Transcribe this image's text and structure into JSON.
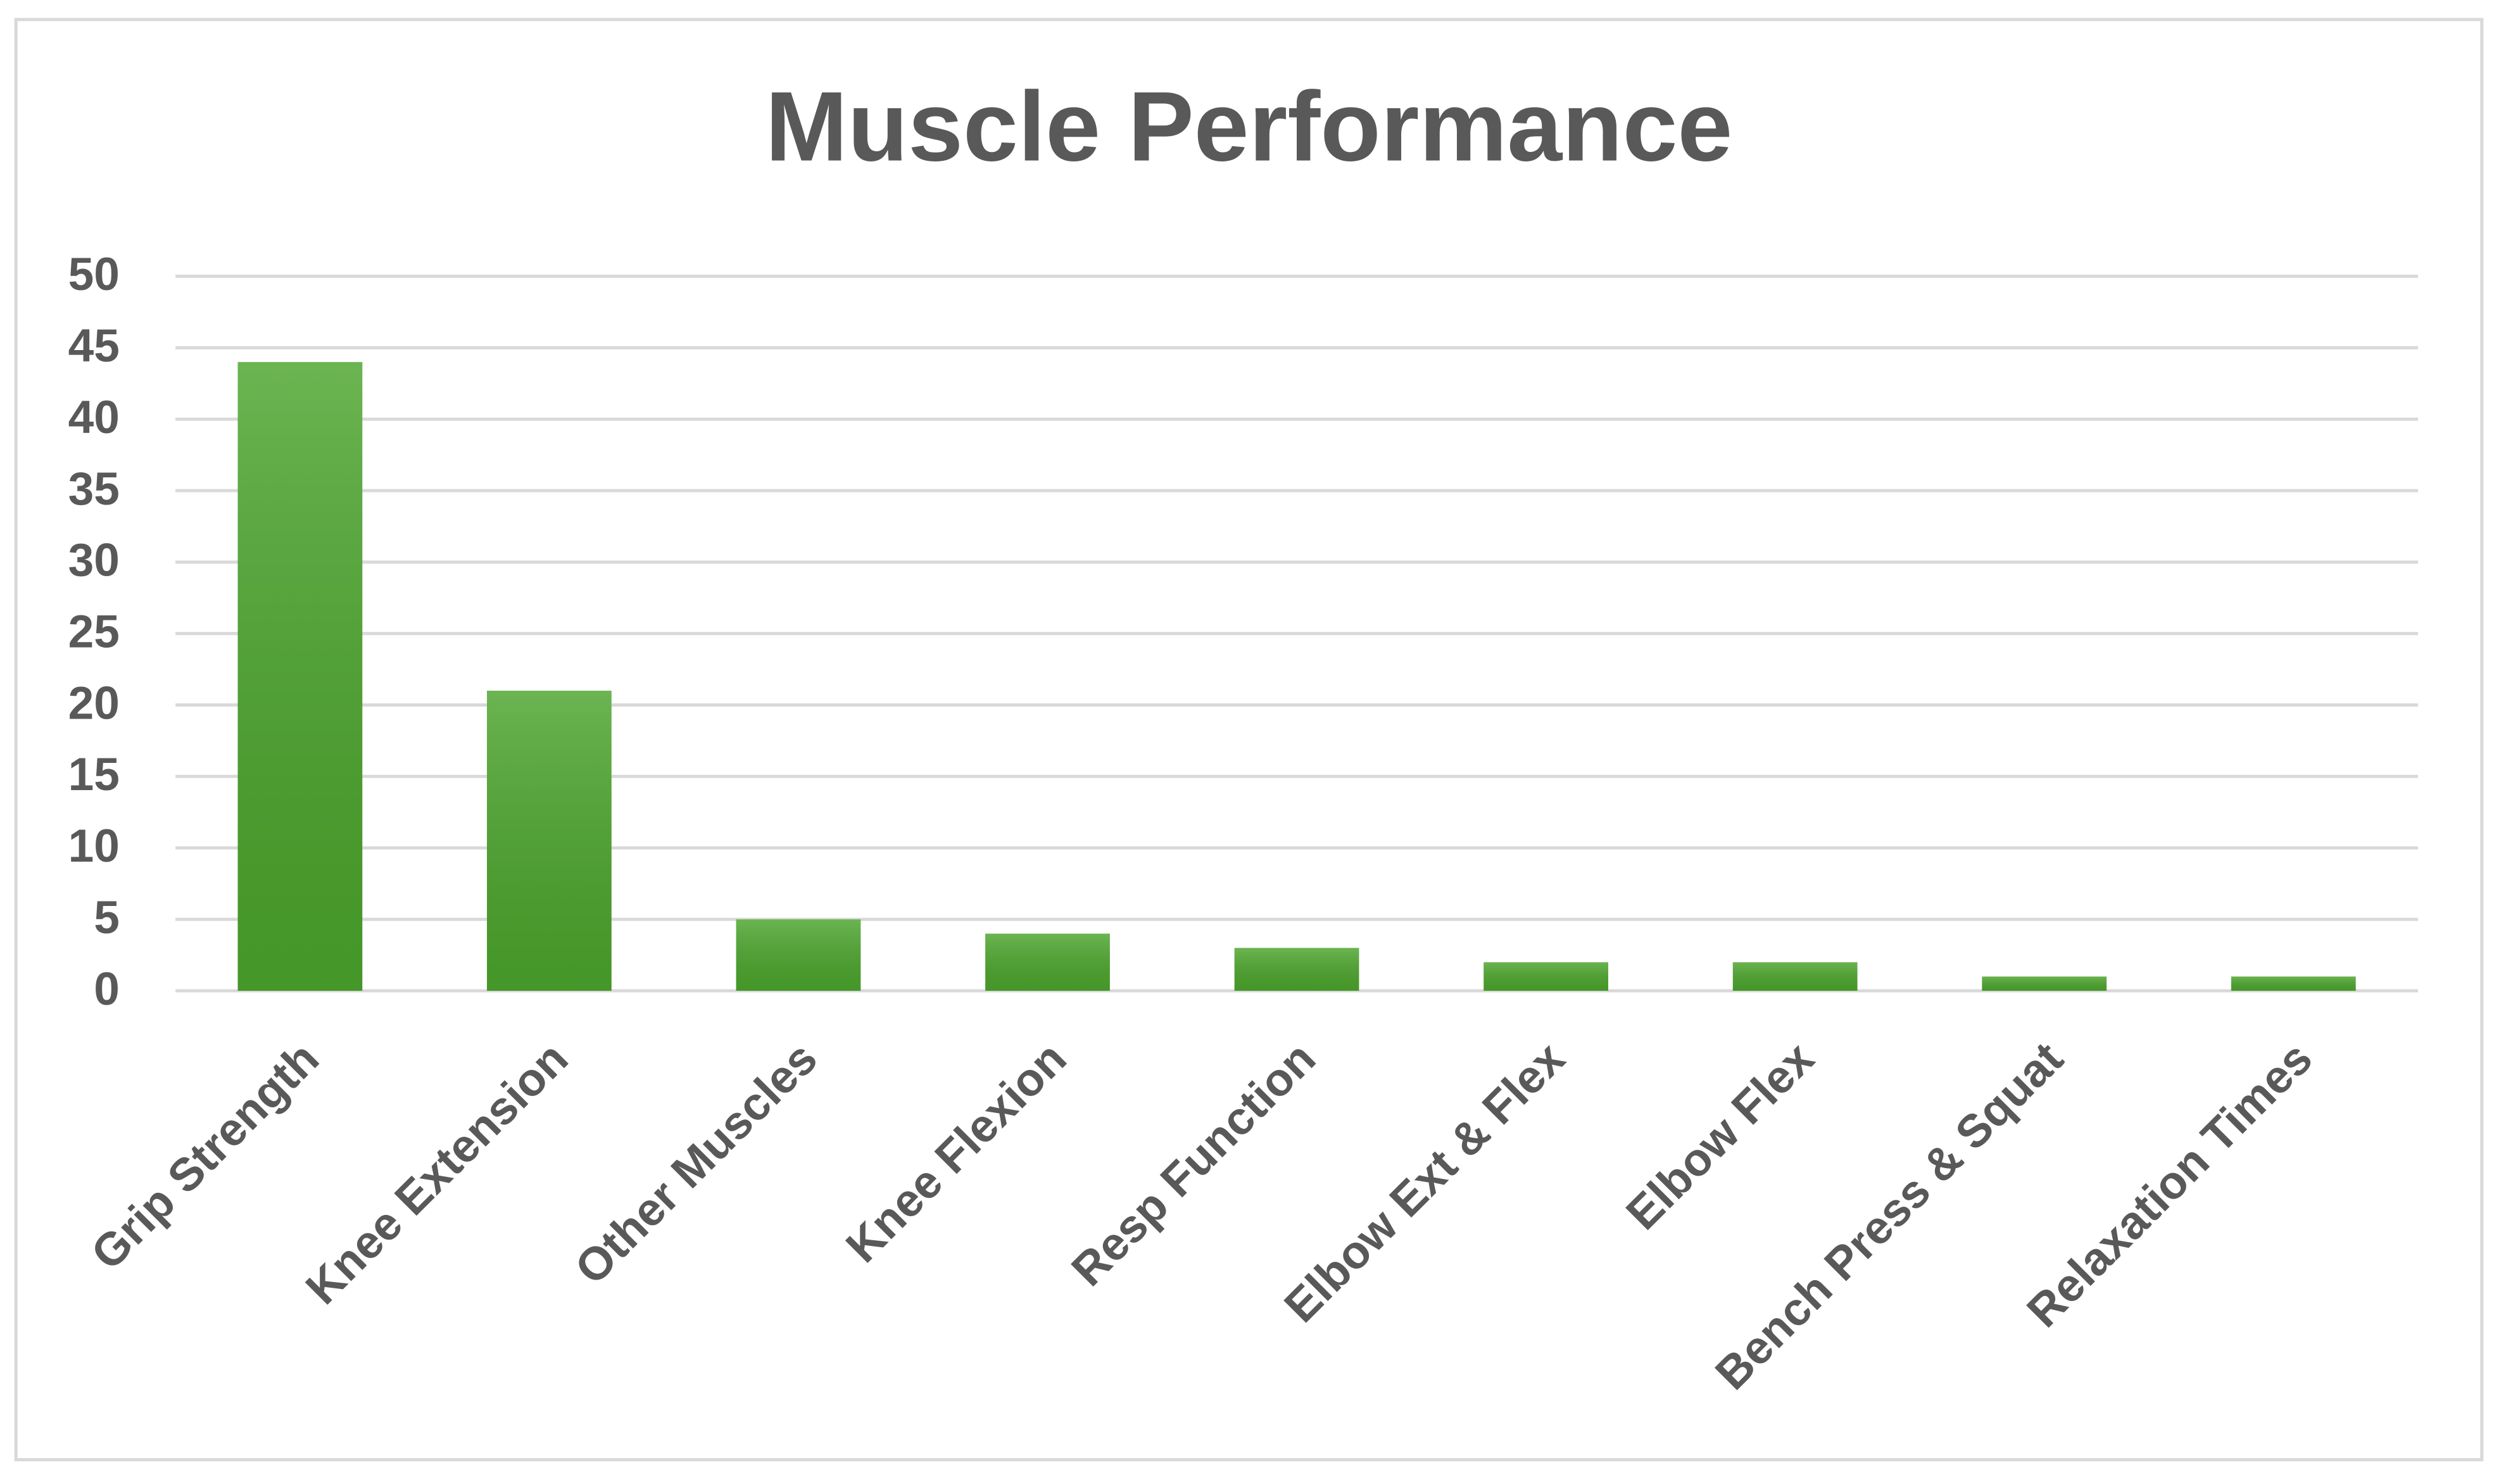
{
  "chart_data": {
    "type": "bar",
    "title": "Muscle Performance",
    "categories": [
      "Grip Strength",
      "Knee Extension",
      "Other Muscles",
      "Knee Flexion",
      "Resp Function",
      "Elbow Ext & Flex",
      "Elbow Flex",
      "Bench Press & Squat",
      "Relaxation Times"
    ],
    "values": [
      44,
      21,
      5,
      4,
      3,
      2,
      2,
      1,
      1
    ],
    "color": "#4ba42c",
    "ylim": [
      0,
      50
    ],
    "yticks": [
      0,
      5,
      10,
      15,
      20,
      25,
      30,
      35,
      40,
      45,
      50
    ],
    "grid": true
  }
}
